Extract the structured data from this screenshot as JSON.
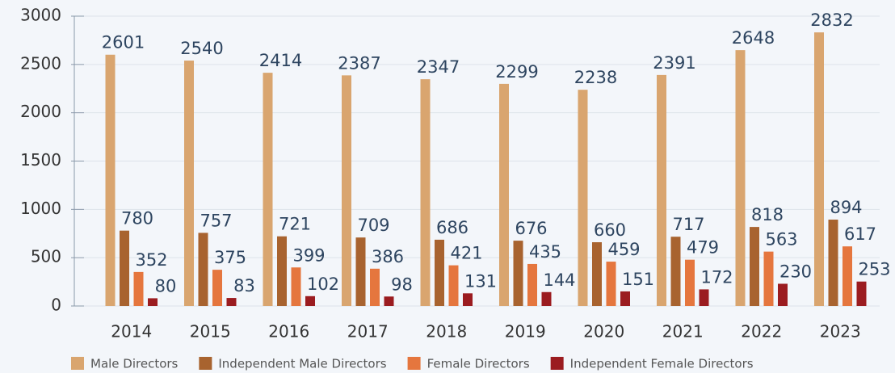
{
  "chart_data": {
    "type": "bar",
    "categories": [
      "2014",
      "2015",
      "2016",
      "2017",
      "2018",
      "2019",
      "2020",
      "2021",
      "2022",
      "2023"
    ],
    "series": [
      {
        "name": "Male Directors",
        "color": "#d9a56f",
        "values": [
          2601,
          2540,
          2414,
          2387,
          2347,
          2299,
          2238,
          2391,
          2648,
          2832
        ]
      },
      {
        "name": "Independent Male Directors",
        "color": "#a8632f",
        "values": [
          780,
          757,
          721,
          709,
          686,
          676,
          660,
          717,
          818,
          894
        ]
      },
      {
        "name": "Female Directors",
        "color": "#e5763e",
        "values": [
          352,
          375,
          399,
          386,
          421,
          435,
          459,
          479,
          563,
          617
        ]
      },
      {
        "name": "Independent Female Directors",
        "color": "#9b1c20",
        "values": [
          80,
          83,
          102,
          98,
          131,
          144,
          151,
          172,
          230,
          253
        ]
      }
    ],
    "ylim": [
      0,
      3000
    ],
    "yticks": [
      0,
      500,
      1000,
      1500,
      2000,
      2500,
      3000
    ],
    "grid": true
  }
}
